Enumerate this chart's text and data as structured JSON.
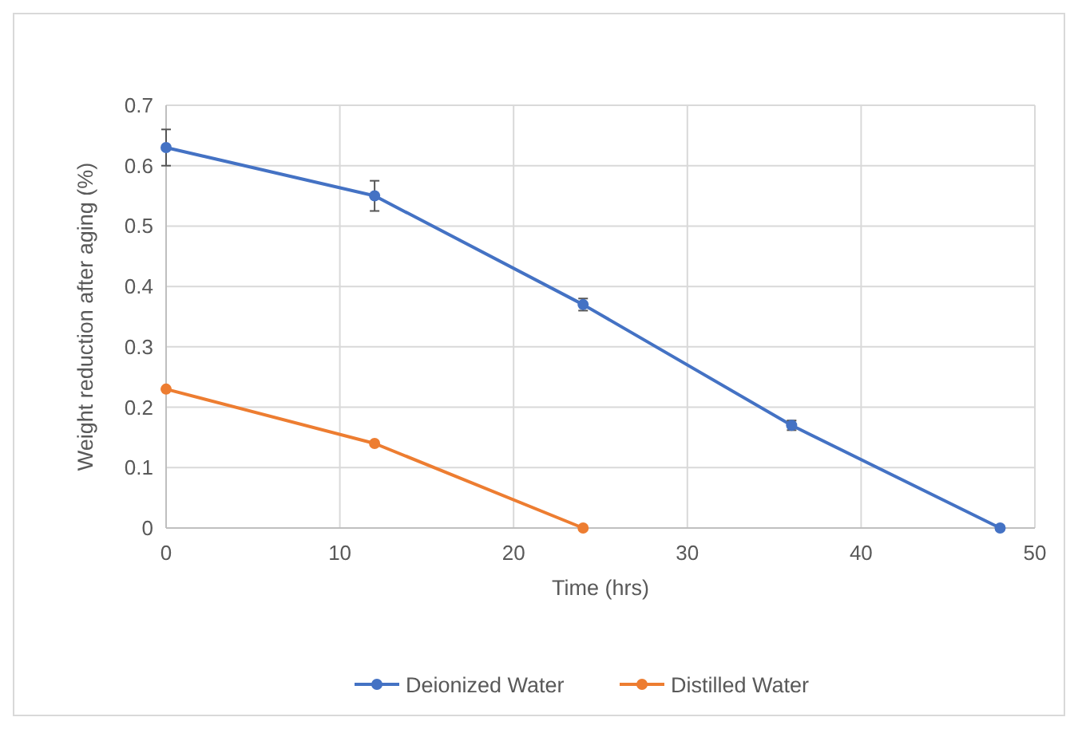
{
  "chart_data": {
    "type": "line",
    "xlabel": "Time (hrs)",
    "ylabel": "Weight reduction after aging (%)",
    "x": [
      0,
      12,
      24,
      36,
      48
    ],
    "series": [
      {
        "name": "Deionized Water",
        "color": "#4472c4",
        "values": [
          0.63,
          0.55,
          0.37,
          0.17,
          0
        ],
        "errors": [
          0.03,
          0.025,
          0.01,
          0.008,
          null
        ]
      },
      {
        "name": "Distilled Water",
        "color": "#ed7d31",
        "x": [
          0,
          12,
          24
        ],
        "values": [
          0.23,
          0.14,
          0
        ]
      }
    ],
    "xlim": [
      0,
      50
    ],
    "xticks": [
      0,
      10,
      20,
      30,
      40,
      50
    ],
    "ylim": [
      0,
      0.7
    ],
    "yticks": [
      0,
      0.1,
      0.2,
      0.3,
      0.4,
      0.5,
      0.6,
      0.7
    ],
    "grid": true,
    "legend": "bottom",
    "marker": "circle",
    "line_style": "solid"
  }
}
